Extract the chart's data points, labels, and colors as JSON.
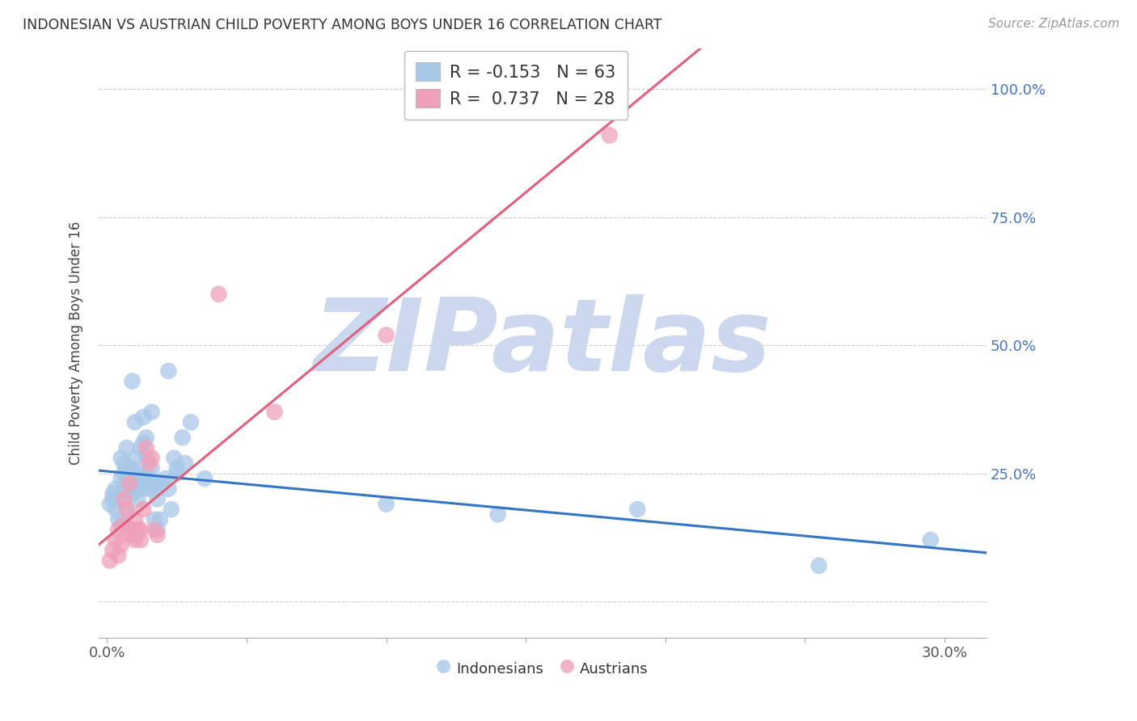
{
  "title": "INDONESIAN VS AUSTRIAN CHILD POVERTY AMONG BOYS UNDER 16 CORRELATION CHART",
  "source": "Source: ZipAtlas.com",
  "ylabel": "Child Poverty Among Boys Under 16",
  "xlim": [
    -0.003,
    0.315
  ],
  "ylim": [
    -0.07,
    1.08
  ],
  "indonesian_color": "#a8c8e8",
  "austrian_color": "#f0a0b8",
  "indonesian_line_color": "#3575c8",
  "austrian_line_color": "#e06080",
  "R_indonesian": -0.153,
  "N_indonesian": 63,
  "R_austrian": 0.737,
  "N_austrian": 28,
  "indonesian_points": [
    [
      0.001,
      0.19
    ],
    [
      0.002,
      0.21
    ],
    [
      0.002,
      0.2
    ],
    [
      0.003,
      0.18
    ],
    [
      0.003,
      0.22
    ],
    [
      0.004,
      0.2
    ],
    [
      0.004,
      0.16
    ],
    [
      0.005,
      0.15
    ],
    [
      0.005,
      0.24
    ],
    [
      0.005,
      0.28
    ],
    [
      0.006,
      0.25
    ],
    [
      0.006,
      0.27
    ],
    [
      0.006,
      0.22
    ],
    [
      0.007,
      0.26
    ],
    [
      0.007,
      0.18
    ],
    [
      0.007,
      0.3
    ],
    [
      0.008,
      0.22
    ],
    [
      0.008,
      0.24
    ],
    [
      0.009,
      0.26
    ],
    [
      0.009,
      0.21
    ],
    [
      0.009,
      0.43
    ],
    [
      0.01,
      0.35
    ],
    [
      0.01,
      0.28
    ],
    [
      0.01,
      0.23
    ],
    [
      0.011,
      0.2
    ],
    [
      0.011,
      0.22
    ],
    [
      0.011,
      0.25
    ],
    [
      0.012,
      0.3
    ],
    [
      0.012,
      0.24
    ],
    [
      0.012,
      0.22
    ],
    [
      0.013,
      0.36
    ],
    [
      0.013,
      0.23
    ],
    [
      0.013,
      0.31
    ],
    [
      0.014,
      0.25
    ],
    [
      0.014,
      0.32
    ],
    [
      0.014,
      0.28
    ],
    [
      0.015,
      0.22
    ],
    [
      0.015,
      0.24
    ],
    [
      0.016,
      0.37
    ],
    [
      0.016,
      0.26
    ],
    [
      0.016,
      0.22
    ],
    [
      0.017,
      0.16
    ],
    [
      0.017,
      0.23
    ],
    [
      0.018,
      0.2
    ],
    [
      0.018,
      0.14
    ],
    [
      0.019,
      0.16
    ],
    [
      0.02,
      0.23
    ],
    [
      0.021,
      0.24
    ],
    [
      0.022,
      0.45
    ],
    [
      0.022,
      0.22
    ],
    [
      0.023,
      0.18
    ],
    [
      0.024,
      0.28
    ],
    [
      0.025,
      0.26
    ],
    [
      0.025,
      0.25
    ],
    [
      0.027,
      0.32
    ],
    [
      0.028,
      0.27
    ],
    [
      0.03,
      0.35
    ],
    [
      0.035,
      0.24
    ],
    [
      0.1,
      0.19
    ],
    [
      0.14,
      0.17
    ],
    [
      0.19,
      0.18
    ],
    [
      0.255,
      0.07
    ],
    [
      0.295,
      0.12
    ]
  ],
  "austrian_points": [
    [
      0.001,
      0.08
    ],
    [
      0.002,
      0.1
    ],
    [
      0.003,
      0.12
    ],
    [
      0.004,
      0.14
    ],
    [
      0.004,
      0.09
    ],
    [
      0.005,
      0.11
    ],
    [
      0.006,
      0.15
    ],
    [
      0.006,
      0.2
    ],
    [
      0.007,
      0.18
    ],
    [
      0.008,
      0.13
    ],
    [
      0.008,
      0.23
    ],
    [
      0.009,
      0.14
    ],
    [
      0.009,
      0.13
    ],
    [
      0.01,
      0.12
    ],
    [
      0.01,
      0.16
    ],
    [
      0.011,
      0.14
    ],
    [
      0.012,
      0.12
    ],
    [
      0.012,
      0.14
    ],
    [
      0.013,
      0.18
    ],
    [
      0.014,
      0.3
    ],
    [
      0.015,
      0.27
    ],
    [
      0.016,
      0.28
    ],
    [
      0.017,
      0.14
    ],
    [
      0.018,
      0.13
    ],
    [
      0.04,
      0.6
    ],
    [
      0.06,
      0.37
    ],
    [
      0.1,
      0.52
    ],
    [
      0.18,
      0.91
    ]
  ],
  "watermark_text": "ZIPatlas",
  "watermark_color": "#ccd8ee",
  "background_color": "#ffffff",
  "grid_color": "#cccccc",
  "ytick_vals": [
    0.0,
    0.25,
    0.5,
    0.75,
    1.0
  ],
  "ytick_labels": [
    "",
    "25.0%",
    "50.0%",
    "75.0%",
    "100.0%"
  ],
  "xtick_vals": [
    0.0,
    0.05,
    0.1,
    0.15,
    0.2,
    0.25,
    0.3
  ],
  "xtick_edge_labels": [
    "0.0%",
    "30.0%"
  ]
}
